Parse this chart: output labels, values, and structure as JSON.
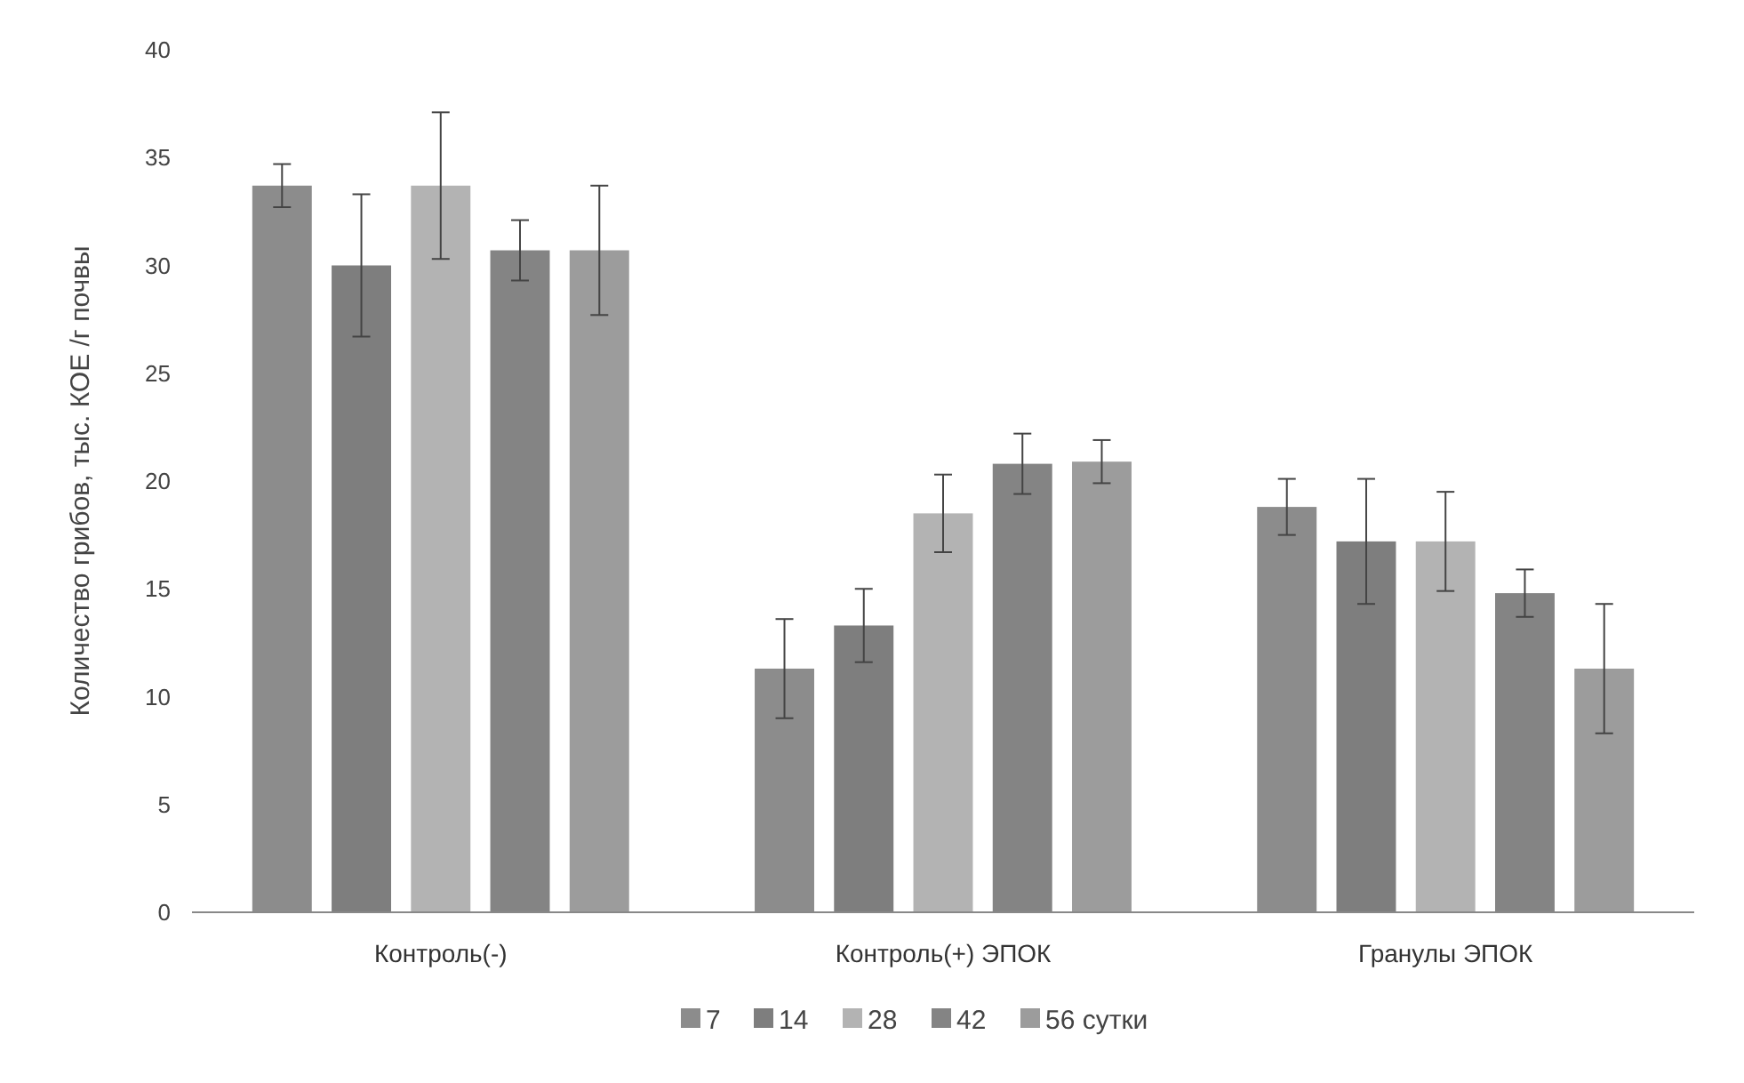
{
  "chart_data": {
    "type": "bar",
    "ylabel": "Количество грибов, тыс. КОЕ /г почвы",
    "categories": [
      "Контроль(-)",
      "Контроль(+) ЭПОК",
      "Гранулы ЭПОК"
    ],
    "series": [
      {
        "name": "7",
        "color": "#8c8c8c",
        "values": [
          33.7,
          11.3,
          18.8
        ],
        "errors": [
          1.0,
          2.3,
          1.3
        ]
      },
      {
        "name": "14",
        "color": "#7e7e7e",
        "values": [
          30.0,
          13.3,
          17.2
        ],
        "errors": [
          3.3,
          1.7,
          2.9
        ]
      },
      {
        "name": "28",
        "color": "#b3b3b3",
        "values": [
          33.7,
          18.5,
          17.2
        ],
        "errors": [
          3.4,
          1.8,
          2.3
        ]
      },
      {
        "name": "42",
        "color": "#848484",
        "values": [
          30.7,
          20.8,
          14.8
        ],
        "errors": [
          1.4,
          1.4,
          1.1
        ]
      },
      {
        "name": "56 сутки",
        "color": "#9c9c9c",
        "values": [
          30.7,
          20.9,
          11.3
        ],
        "errors": [
          3.0,
          1.0,
          3.0
        ]
      }
    ],
    "ylim": [
      0,
      40
    ],
    "yticks": [
      0,
      5,
      10,
      15,
      20,
      25,
      30,
      35,
      40
    ],
    "grid": false,
    "legend": "bottom"
  }
}
